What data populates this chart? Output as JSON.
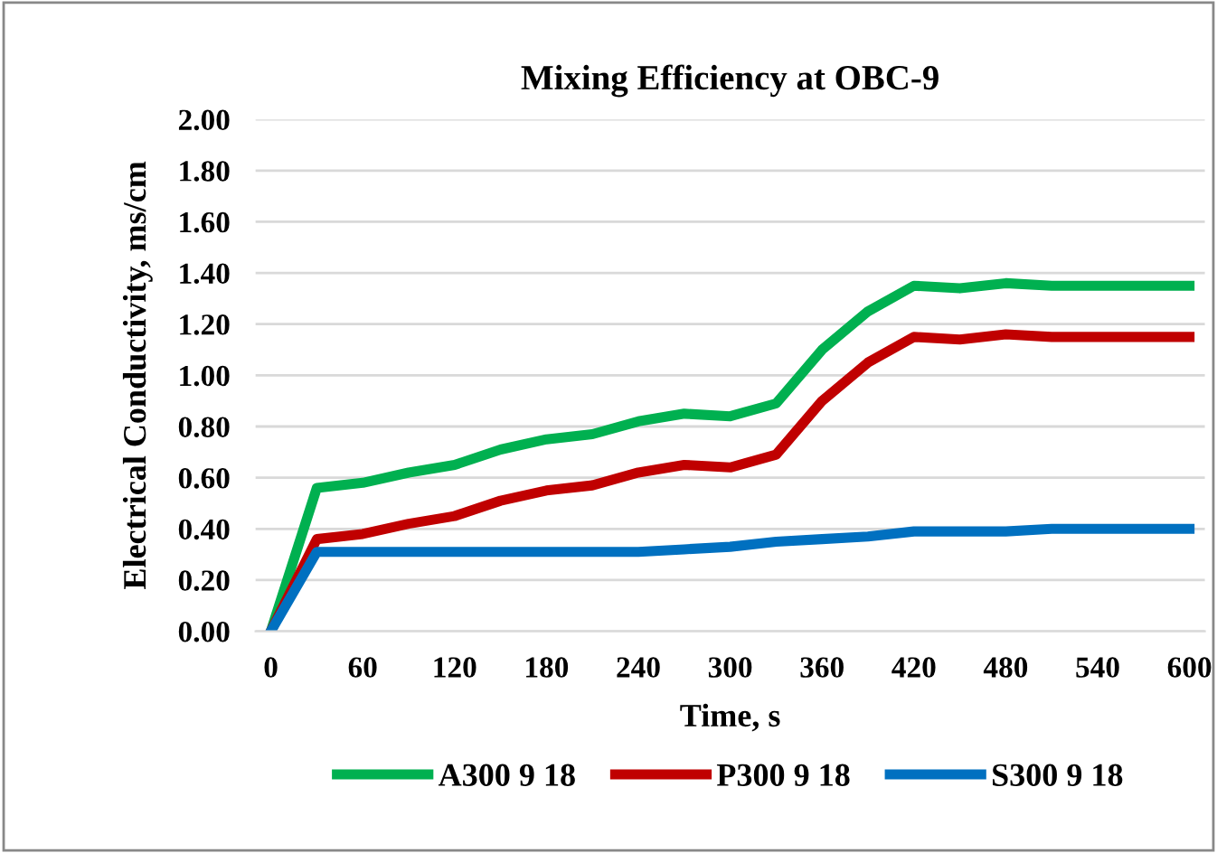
{
  "chart_data": {
    "type": "line",
    "title": "Mixing Efficiency at OBC-9",
    "xlabel": "Time, s",
    "ylabel": "Electrical Conductivity, ms/cm",
    "x": [
      0,
      30,
      60,
      90,
      120,
      150,
      180,
      210,
      240,
      270,
      300,
      330,
      360,
      390,
      420,
      450,
      480,
      510,
      540,
      570,
      600
    ],
    "series": [
      {
        "name": "A300 9 18",
        "color": "#00b050",
        "values": [
          0,
          0.56,
          0.58,
          0.62,
          0.65,
          0.71,
          0.75,
          0.77,
          0.82,
          0.85,
          0.84,
          0.89,
          1.1,
          1.25,
          1.35,
          1.34,
          1.36,
          1.35,
          1.35,
          1.35,
          1.35
        ]
      },
      {
        "name": "P300 9 18",
        "color": "#c00000",
        "values": [
          0,
          0.36,
          0.38,
          0.42,
          0.45,
          0.51,
          0.55,
          0.57,
          0.62,
          0.65,
          0.64,
          0.69,
          0.9,
          1.05,
          1.15,
          1.14,
          1.16,
          1.15,
          1.15,
          1.15,
          1.15
        ]
      },
      {
        "name": "S300 9 18",
        "color": "#0070c0",
        "values": [
          0,
          0.31,
          0.31,
          0.31,
          0.31,
          0.31,
          0.31,
          0.31,
          0.31,
          0.32,
          0.33,
          0.35,
          0.36,
          0.37,
          0.39,
          0.39,
          0.39,
          0.4,
          0.4,
          0.4,
          0.4
        ]
      }
    ],
    "xlim": [
      -10,
      610
    ],
    "xticks": [
      0,
      60,
      120,
      180,
      240,
      300,
      360,
      420,
      480,
      540,
      600
    ],
    "ylim": [
      0,
      2
    ],
    "yticks": [
      {
        "value": 0,
        "label": "0.00"
      },
      {
        "value": 0.2,
        "label": "0.20"
      },
      {
        "value": 0.4,
        "label": "0.40"
      },
      {
        "value": 0.6,
        "label": "0.60"
      },
      {
        "value": 0.8,
        "label": "0.80"
      },
      {
        "value": 1.0,
        "label": "1.00"
      },
      {
        "value": 1.2,
        "label": "1.20"
      },
      {
        "value": 1.4,
        "label": "1.40"
      },
      {
        "value": 1.6,
        "label": "1.60"
      },
      {
        "value": 1.8,
        "label": "1.80"
      },
      {
        "value": 2.0,
        "label": "2.00"
      }
    ],
    "grid": "y",
    "legend": "bottom",
    "marker": "none",
    "line_style": "solid"
  }
}
